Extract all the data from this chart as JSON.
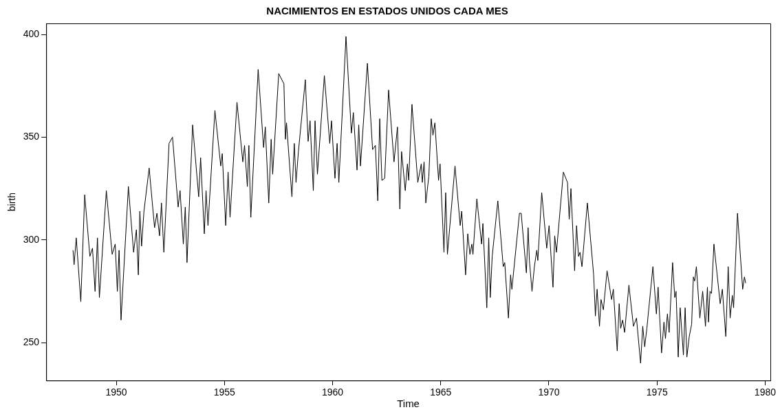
{
  "chart_data": {
    "type": "line",
    "title": "NACIMIENTOS EN ESTADOS UNIDOS CADA MES",
    "xlabel": "Time",
    "ylabel": "birth",
    "xlim": [
      1946.76,
      1980.24
    ],
    "xticks": [
      1950,
      1955,
      1960,
      1965,
      1970,
      1975,
      1980
    ],
    "ylim": [
      231.6,
      405.4
    ],
    "yticks": [
      250,
      300,
      350,
      400
    ],
    "marker": "none",
    "line_style": "solid",
    "series": [
      {
        "color": "#000000",
        "x": [
          1948.0,
          1948.05,
          1948.15,
          1948.36,
          1948.54,
          1948.78,
          1948.9,
          1949.02,
          1949.13,
          1949.22,
          1949.54,
          1949.81,
          1949.95,
          1950.05,
          1950.13,
          1950.22,
          1950.56,
          1950.8,
          1950.93,
          1951.02,
          1951.09,
          1951.17,
          1951.28,
          1951.52,
          1951.77,
          1951.88,
          1952.0,
          1952.09,
          1952.2,
          1952.44,
          1952.6,
          1952.86,
          1952.95,
          1953.1,
          1953.19,
          1953.27,
          1953.53,
          1953.81,
          1953.9,
          1954.07,
          1954.15,
          1954.24,
          1954.56,
          1954.83,
          1954.9,
          1955.06,
          1955.17,
          1955.26,
          1955.58,
          1955.85,
          1955.93,
          1956.06,
          1956.13,
          1956.22,
          1956.56,
          1956.81,
          1956.89,
          1957.05,
          1957.16,
          1957.23,
          1957.51,
          1957.75,
          1957.82,
          1957.87,
          1958.12,
          1958.23,
          1958.31,
          1958.42,
          1958.74,
          1958.87,
          1958.96,
          1959.11,
          1959.19,
          1959.3,
          1959.62,
          1959.87,
          1959.95,
          1960.11,
          1960.21,
          1960.29,
          1960.62,
          1960.87,
          1960.96,
          1961.13,
          1961.21,
          1961.29,
          1961.61,
          1961.85,
          1961.98,
          1962.09,
          1962.18,
          1962.28,
          1962.41,
          1962.59,
          1962.84,
          1963.0,
          1963.11,
          1963.19,
          1963.36,
          1963.46,
          1963.52,
          1963.67,
          1963.94,
          1964.1,
          1964.15,
          1964.23,
          1964.31,
          1964.45,
          1964.56,
          1964.64,
          1964.73,
          1964.9,
          1964.97,
          1965.15,
          1965.23,
          1965.31,
          1965.66,
          1965.9,
          1965.97,
          1966.15,
          1966.25,
          1966.35,
          1966.44,
          1966.49,
          1966.67,
          1966.89,
          1966.95,
          1967.13,
          1967.22,
          1967.29,
          1967.38,
          1967.64,
          1967.89,
          1967.96,
          1968.13,
          1968.23,
          1968.29,
          1968.64,
          1968.72,
          1968.96,
          1969.04,
          1969.1,
          1969.22,
          1969.33,
          1969.44,
          1969.49,
          1969.67,
          1969.9,
          1970.01,
          1970.19,
          1970.27,
          1970.35,
          1970.67,
          1970.86,
          1970.94,
          1971.02,
          1971.19,
          1971.28,
          1971.37,
          1971.44,
          1971.53,
          1971.78,
          1972.07,
          1972.15,
          1972.23,
          1972.34,
          1972.41,
          1972.52,
          1972.69,
          1972.9,
          1972.98,
          1973.16,
          1973.25,
          1973.32,
          1973.41,
          1973.5,
          1973.7,
          1973.91,
          1974.05,
          1974.24,
          1974.34,
          1974.43,
          1974.53,
          1974.81,
          1974.97,
          1975.05,
          1975.21,
          1975.32,
          1975.39,
          1975.48,
          1975.56,
          1975.72,
          1975.82,
          1975.88,
          1975.98,
          1976.07,
          1976.22,
          1976.3,
          1976.38,
          1976.49,
          1976.6,
          1976.68,
          1976.74,
          1976.82,
          1976.98,
          1977.11,
          1977.24,
          1977.33,
          1977.38,
          1977.45,
          1977.52,
          1977.63,
          1977.92,
          1978.02,
          1978.18,
          1978.29,
          1978.38,
          1978.48,
          1978.54,
          1978.72,
          1978.96,
          1979.04,
          1979.1
        ],
        "values": [
          295,
          288,
          301,
          270,
          322,
          292,
          296,
          275,
          301,
          272,
          324,
          293,
          298,
          275,
          295,
          261,
          326,
          294,
          305,
          283,
          314,
          297,
          314,
          335,
          306,
          313,
          302,
          318,
          294,
          347,
          350,
          316,
          324,
          298,
          316,
          289,
          356,
          321,
          340,
          303,
          324,
          307,
          363,
          336,
          342,
          307,
          333,
          311,
          367,
          338,
          346,
          326,
          346,
          311,
          383,
          345,
          355,
          318,
          349,
          332,
          381,
          376,
          349,
          357,
          321,
          347,
          328,
          343,
          378,
          348,
          358,
          324,
          358,
          332,
          380,
          347,
          358,
          330,
          347,
          328,
          399,
          352,
          362,
          334,
          356,
          336,
          386,
          344,
          346,
          319,
          359,
          329,
          330,
          373,
          338,
          355,
          315,
          343,
          324,
          337,
          329,
          366,
          328,
          337,
          328,
          338,
          318,
          331,
          359,
          351,
          357,
          329,
          337,
          294,
          323,
          293,
          336,
          307,
          314,
          283,
          303,
          293,
          298,
          293,
          320,
          298,
          308,
          267,
          301,
          272,
          292,
          319,
          287,
          289,
          262,
          283,
          276,
          313,
          313,
          284,
          306,
          290,
          275,
          287,
          295,
          290,
          323,
          296,
          307,
          277,
          302,
          294,
          333,
          328,
          310,
          325,
          285,
          307,
          292,
          294,
          287,
          318,
          283,
          263,
          276,
          258,
          271,
          266,
          285,
          271,
          276,
          246,
          269,
          257,
          261,
          255,
          278,
          258,
          262,
          240,
          258,
          248,
          257,
          287,
          264,
          277,
          245,
          260,
          252,
          264,
          255,
          289,
          272,
          275,
          243,
          267,
          244,
          267,
          243,
          253,
          259,
          282,
          280,
          287,
          262,
          275,
          258,
          277,
          260,
          275,
          274,
          298,
          269,
          276,
          253,
          287,
          262,
          273,
          267,
          313,
          276,
          282,
          279
        ]
      }
    ]
  }
}
